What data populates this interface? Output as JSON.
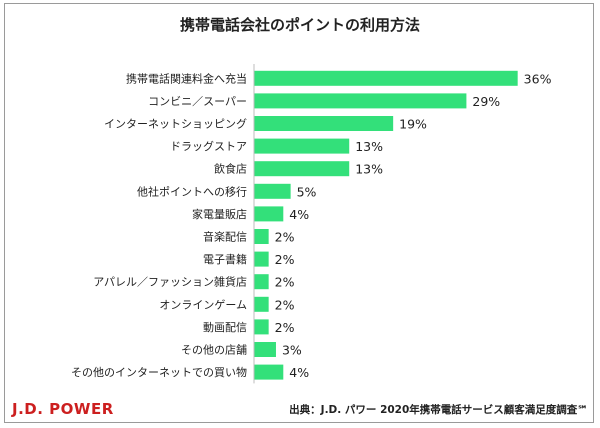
{
  "chart_data": {
    "type": "bar",
    "orientation": "horizontal",
    "title": "携帯電話会社のポイントの利用方法",
    "categories": [
      "携帯電話関連料金へ充当",
      "コンビニ／スーパー",
      "インターネットショッピング",
      "ドラッグストア",
      "飲食店",
      "他社ポイントへの移行",
      "家電量販店",
      "音楽配信",
      "電子書籍",
      "アパレル／ファッション雑貨店",
      "オンラインゲーム",
      "動画配信",
      "その他の店舗",
      "その他のインターネットでの買い物"
    ],
    "values": [
      36,
      29,
      19,
      13,
      13,
      5,
      4,
      2,
      2,
      2,
      2,
      2,
      3,
      4
    ],
    "value_suffix": "%",
    "xlabel": "",
    "ylabel": "",
    "xlim": [
      0,
      37
    ],
    "grid": false,
    "legend": "none",
    "bar_color": "#33e07a"
  },
  "footer": {
    "brand": "J.D. POWER",
    "source": "出典：J.D. パワー 2020年携帯電話サービス顧客満足度調査℠",
    "brand_color": "#cc1f1f"
  }
}
